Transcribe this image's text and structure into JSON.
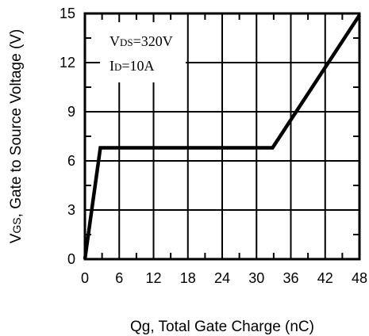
{
  "chart_data": {
    "type": "line",
    "xlabel": "Qg, Total Gate Charge (nC)",
    "ylabel": {
      "main": "V",
      "sub": "GS",
      "rest": ", Gate to Source Voltage (V)"
    },
    "xlim": [
      0,
      48
    ],
    "ylim": [
      0,
      15
    ],
    "x_ticks": [
      0,
      6,
      12,
      18,
      24,
      30,
      36,
      42,
      48
    ],
    "y_ticks": [
      0,
      3,
      6,
      9,
      12,
      15
    ],
    "x_tick_labels": [
      "0",
      "6",
      "12",
      "18",
      "24",
      "30",
      "36",
      "42",
      "48"
    ],
    "y_tick_labels": [
      "0",
      "3",
      "6",
      "9",
      "12",
      "15"
    ],
    "grid": true,
    "series": [
      {
        "x": [
          0,
          2.7,
          32.8,
          48
        ],
        "y": [
          0,
          6.8,
          6.8,
          14.9
        ]
      }
    ],
    "annotations": [
      {
        "main": "V",
        "sub": "DS",
        "rest": "=320V"
      },
      {
        "main": "I",
        "sub": "D",
        "rest": "=10A"
      }
    ]
  }
}
